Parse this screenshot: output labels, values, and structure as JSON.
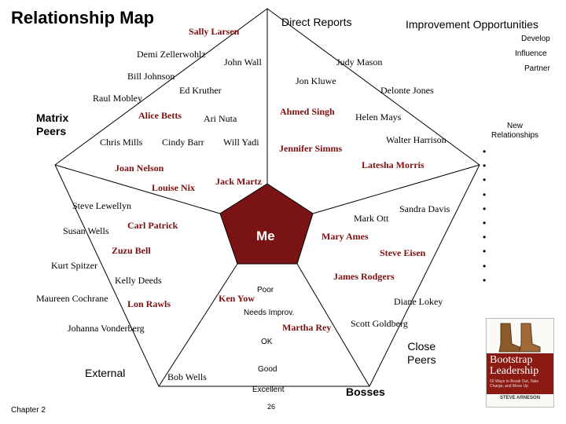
{
  "title": "Relationship Map",
  "sections": {
    "direct_reports": "Direct Reports",
    "improvement_opportunities": "Improvement Opportunities",
    "matrix_peers": "Matrix\nPeers",
    "external": "External",
    "bosses": "Bosses",
    "close_peers": "Close\nPeers",
    "new_relationships": "New\nRelationships"
  },
  "legend": {
    "develop": "Develop",
    "influence": "Influence",
    "partner": "Partner"
  },
  "center_label": "Me",
  "rings": {
    "poor": "Poor",
    "needs_improv": "Needs Improv.",
    "ok": "OK",
    "good": "Good",
    "excellent": "Excellent"
  },
  "names": {
    "sally_larsen": "Sally Larsen",
    "demi_zellerwohlz": "Demi Zellerwohlz",
    "john_wall": "John Wall",
    "judy_mason": "Judy Mason",
    "bill_johnson": "Bill Johnson",
    "jon_kluwe": "Jon Kluwe",
    "ed_kruther": "Ed Kruther",
    "raul_mobley": "Raul Mobley",
    "delonte_jones": "Delonte Jones",
    "alice_betts": "Alice Betts",
    "ari_nuta": "Ari Nuta",
    "ahmed_singh": "Ahmed Singh",
    "helen_mays": "Helen Mays",
    "chris_mills": "Chris Mills",
    "cindy_barr": "Cindy Barr",
    "will_yadi": "Will Yadi",
    "jennifer_simms": "Jennifer Simms",
    "walter_harrison": "Walter Harrison",
    "joan_nelson": "Joan Nelson",
    "latesha_morris": "Latesha Morris",
    "louise_nix": "Louise Nix",
    "jack_martz": "Jack Martz",
    "steve_lewellyn": "Steve Lewellyn",
    "sandra_davis": "Sandra Davis",
    "mark_ott": "Mark Ott",
    "susan_wells": "Susan Wells",
    "carl_patrick": "Carl Patrick",
    "mary_ames": "Mary Ames",
    "zuzu_bell": "Zuzu Bell",
    "steve_eisen": "Steve Eisen",
    "kurt_spitzer": "Kurt Spitzer",
    "james_rodgers": "James Rodgers",
    "kelly_deeds": "Kelly Deeds",
    "maureen_cochrane": "Maureen Cochrane",
    "lon_rawls": "Lon Rawls",
    "ken_yow": "Ken Yow",
    "diane_lokey": "Diane Lokey",
    "johanna_vonderberg": "Johanna Vonderberg",
    "martha_rey": "Martha Rey",
    "scott_goldberg": "Scott Goldberg",
    "bob_wells": "Bob Wells"
  },
  "new_relationship_slots": [
    "•",
    "•",
    "•",
    "•",
    "•",
    "•",
    "•",
    "•",
    "•",
    "•"
  ],
  "book": {
    "title": "Bootstrap\nLeadership",
    "subtitle": "50 Ways to Break Out, Take Charge, and Move Up",
    "author": "STEVE ARNESON"
  },
  "footer": {
    "chapter": "Chapter 2",
    "page": "26"
  },
  "colors": {
    "center_fill": "#7a1414",
    "accent_text": "#7a1010",
    "line": "#000000"
  }
}
